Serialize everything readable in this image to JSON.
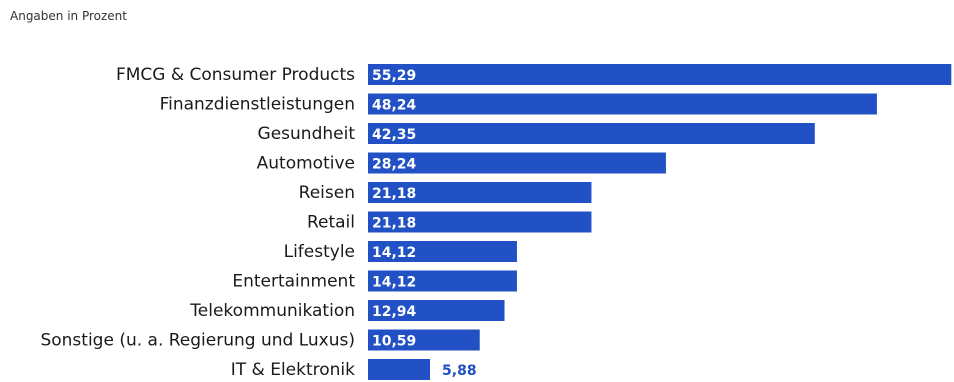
{
  "chart_data": {
    "type": "bar",
    "orientation": "horizontal",
    "subtitle": "Angaben in Prozent",
    "categories": [
      "FMCG & Consumer Products",
      "Finanzdienstleistungen",
      "Gesundheit",
      "Automotive",
      "Reisen",
      "Retail",
      "Lifestyle",
      "Entertainment",
      "Telekommunikation",
      "Sonstige (u. a. Regierung und Luxus)",
      "IT & Elektronik"
    ],
    "values": [
      55.29,
      48.24,
      42.35,
      28.24,
      21.18,
      21.18,
      14.12,
      14.12,
      12.94,
      10.59,
      5.88
    ],
    "value_labels": [
      "55,29",
      "48,24",
      "42,35",
      "28,24",
      "21,18",
      "21,18",
      "14,12",
      "14,12",
      "12,94",
      "10,59",
      "5,88"
    ],
    "bar_color": "#2151c4",
    "label_inside_color": "#ffffff",
    "label_outside_color": "#2151c4",
    "grid": false,
    "legend": "none"
  }
}
